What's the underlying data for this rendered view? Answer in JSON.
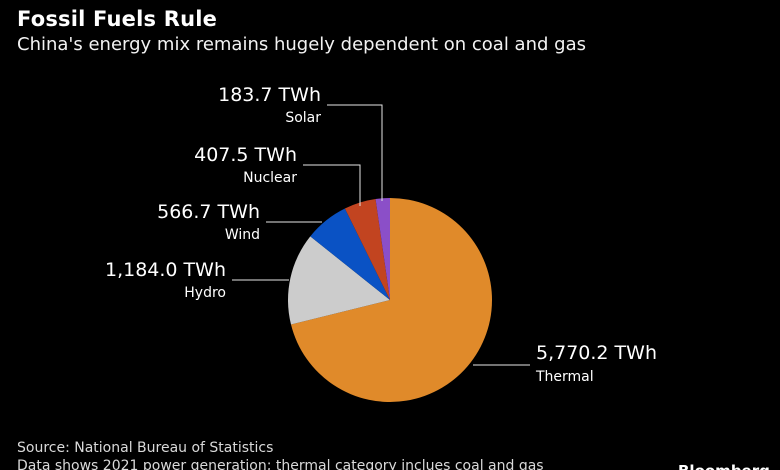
{
  "title": "Fossil Fuels Rule",
  "subtitle": "China's energy mix remains hugely dependent on coal and gas",
  "source": "Source: National Bureau of Statistics",
  "note": "Data shows 2021 power generation; thermal category inclues coal and gas",
  "logo": "Bloomberg",
  "chart_data": {
    "type": "pie",
    "unit": "TWh",
    "slices": [
      {
        "name": "Thermal",
        "value": 5770.2,
        "value_label": "5,770.2 TWh",
        "color": "#e08a2a"
      },
      {
        "name": "Hydro",
        "value": 1184.0,
        "value_label": "1,184.0 TWh",
        "color": "#cccccc"
      },
      {
        "name": "Wind",
        "value": 566.7,
        "value_label": "566.7 TWh",
        "color": "#0a52c4"
      },
      {
        "name": "Nuclear",
        "value": 407.5,
        "value_label": "407.5 TWh",
        "color": "#c24420"
      },
      {
        "name": "Solar",
        "value": 183.7,
        "value_label": "183.7 TWh",
        "color": "#8b4fc8"
      }
    ]
  }
}
